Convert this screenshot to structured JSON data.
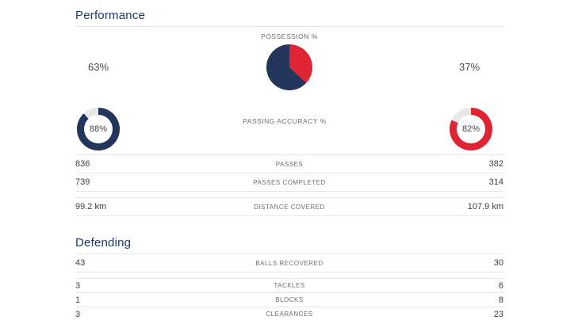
{
  "colors": {
    "home": "#24355C",
    "away": "#DF2433",
    "track": "#E8E8E8",
    "title_text": "#1D3A6B"
  },
  "performance": {
    "title": "Performance",
    "possession": {
      "label": "POSSESSION %",
      "home_pct": 63,
      "away_pct": 37,
      "home_text": "63%",
      "away_text": "37%"
    },
    "passing": {
      "label": "PASSING ACCURACY %",
      "home_pct": 88,
      "away_pct": 82,
      "home_text": "88%",
      "away_text": "82%"
    },
    "rows": [
      {
        "label": "PASSES",
        "home": "836",
        "away": "382"
      },
      {
        "label": "PASSES COMPLETED",
        "home": "739",
        "away": "314"
      },
      {
        "label": "DISTANCE COVERED",
        "home": "99.2 km",
        "away": "107.9 km"
      }
    ]
  },
  "defending": {
    "title": "Defending",
    "rows": [
      {
        "label": "BALLS RECOVERED",
        "home": "43",
        "away": "30"
      },
      {
        "label": "TACKLES",
        "home": "3",
        "away": "6"
      },
      {
        "label": "BLOCKS",
        "home": "1",
        "away": "8"
      },
      {
        "label": "CLEARANCES",
        "home": "3",
        "away": "23"
      }
    ]
  },
  "chart_data": [
    {
      "type": "pie",
      "title": "POSSESSION %",
      "categories": [
        "home",
        "away"
      ],
      "values": [
        63,
        37
      ],
      "colors": [
        "#24355C",
        "#DF2433"
      ]
    },
    {
      "type": "pie",
      "title": "PASSING ACCURACY % (home donut)",
      "categories": [
        "completed",
        "remainder"
      ],
      "values": [
        88,
        12
      ],
      "colors": [
        "#24355C",
        "#E8E8E8"
      ]
    },
    {
      "type": "pie",
      "title": "PASSING ACCURACY % (away donut)",
      "categories": [
        "completed",
        "remainder"
      ],
      "values": [
        82,
        18
      ],
      "colors": [
        "#DF2433",
        "#E8E8E8"
      ]
    }
  ]
}
